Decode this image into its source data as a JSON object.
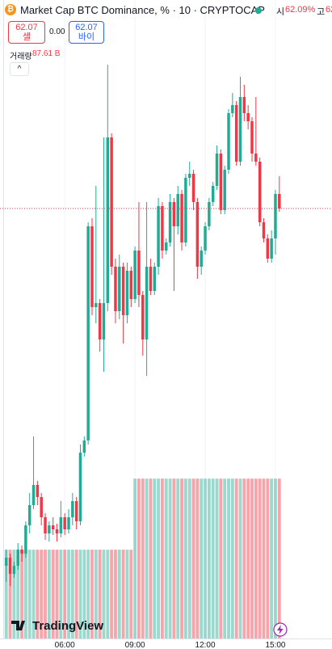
{
  "header": {
    "icon": "₿",
    "title": "Market Cap BTC Dominance, % · 10 · CRYPTOCAP",
    "open_label": "시",
    "open_value": "62.09%",
    "high_label": "고",
    "high_value": "62"
  },
  "trade": {
    "sell_price": "62.07",
    "sell_label": "셀",
    "spread": "0.00",
    "buy_price": "62.07",
    "buy_label": "바이"
  },
  "logo": "TradingView",
  "chart_data": {
    "type": "candlestick",
    "x": [
      210,
      220,
      230,
      240,
      250,
      260,
      270,
      280,
      290,
      300,
      310,
      320,
      330,
      340,
      350,
      360,
      370,
      380,
      390,
      400,
      410,
      420,
      430,
      440,
      450,
      460,
      470,
      480,
      490,
      500,
      510,
      520,
      530,
      540,
      550,
      560,
      570,
      580,
      590,
      600,
      610,
      620,
      630,
      640,
      650,
      660,
      670,
      680,
      690,
      700,
      710,
      720,
      730,
      740,
      750,
      760,
      770,
      780,
      790,
      800,
      810,
      820,
      830,
      840,
      850,
      860,
      870,
      880,
      890,
      900,
      910
    ],
    "open": [
      61.628,
      61.638,
      61.618,
      61.628,
      61.648,
      61.643,
      61.678,
      61.703,
      61.728,
      61.713,
      61.688,
      61.668,
      61.678,
      61.673,
      61.668,
      61.688,
      61.673,
      61.688,
      61.708,
      61.683,
      61.768,
      61.783,
      62.048,
      61.948,
      61.953,
      61.908,
      61.953,
      62.158,
      61.998,
      61.943,
      61.998,
      61.938,
      61.993,
      61.958,
      62.018,
      61.963,
      61.908,
      61.998,
      61.968,
      61.998,
      62.073,
      62.018,
      62.028,
      62.078,
      62.048,
      62.088,
      62.028,
      62.108,
      62.113,
      62.078,
      61.998,
      62.018,
      62.048,
      62.078,
      62.098,
      62.138,
      62.068,
      62.118,
      62.188,
      62.198,
      62.128,
      62.208,
      62.188,
      62.178,
      62.138,
      62.128,
      62.053,
      62.033,
      62.008,
      62.033,
      62.088
    ],
    "high": [
      61.648,
      61.643,
      61.633,
      61.656,
      61.653,
      61.683,
      61.718,
      61.788,
      61.733,
      61.718,
      61.693,
      61.683,
      61.688,
      61.68,
      61.708,
      61.693,
      61.698,
      61.718,
      61.713,
      61.778,
      61.788,
      62.053,
      62.058,
      62.098,
      61.958,
      62.158,
      62.248,
      62.163,
      62.008,
      62.013,
      62.003,
      62.003,
      61.998,
      62.023,
      62.078,
      61.968,
      62.078,
      62.008,
      62.003,
      62.083,
      62.078,
      62.033,
      62.088,
      62.083,
      62.098,
      62.093,
      62.113,
      62.128,
      62.118,
      62.083,
      62.023,
      62.053,
      62.083,
      62.103,
      62.148,
      62.143,
      62.123,
      62.193,
      62.213,
      62.203,
      62.233,
      62.223,
      62.198,
      62.183,
      62.208,
      62.133,
      62.058,
      62.038,
      62.043,
      62.093,
      62.11
    ],
    "low": [
      61.608,
      61.603,
      61.613,
      61.623,
      61.633,
      61.638,
      61.668,
      61.698,
      61.703,
      61.678,
      61.66,
      61.658,
      61.666,
      61.658,
      61.663,
      61.666,
      61.668,
      61.678,
      61.673,
      61.678,
      61.763,
      61.778,
      61.938,
      61.928,
      61.893,
      61.868,
      61.943,
      61.988,
      61.928,
      61.933,
      61.903,
      61.928,
      61.948,
      61.953,
      61.948,
      61.888,
      61.863,
      61.963,
      61.963,
      61.988,
      62.008,
      62.013,
      62.023,
      61.968,
      62.038,
      62.018,
      62.023,
      62.098,
      62.068,
      61.983,
      61.988,
      62.013,
      62.043,
      62.073,
      62.093,
      62.063,
      62.063,
      62.113,
      62.183,
      62.123,
      62.123,
      62.178,
      62.168,
      62.128,
      62.123,
      62.048,
      62.028,
      62.003,
      62.003,
      62.013,
      62.066
    ],
    "close": [
      61.638,
      61.618,
      61.628,
      61.648,
      61.643,
      61.678,
      61.703,
      61.728,
      61.713,
      61.688,
      61.668,
      61.678,
      61.673,
      61.668,
      61.688,
      61.673,
      61.688,
      61.708,
      61.683,
      61.768,
      61.783,
      62.048,
      61.948,
      61.953,
      61.908,
      61.953,
      62.158,
      61.998,
      61.943,
      61.998,
      61.938,
      61.993,
      61.958,
      62.018,
      61.963,
      61.908,
      61.998,
      61.968,
      61.998,
      62.073,
      62.018,
      62.028,
      62.078,
      62.048,
      62.088,
      62.028,
      62.108,
      62.113,
      62.078,
      61.998,
      62.018,
      62.048,
      62.078,
      62.098,
      62.138,
      62.068,
      62.118,
      62.188,
      62.198,
      62.128,
      62.208,
      62.188,
      62.178,
      62.138,
      62.128,
      62.053,
      62.033,
      62.008,
      62.033,
      62.088,
      62.07
    ],
    "volume": [
      48.67,
      48.67,
      48.67,
      48.67,
      48.67,
      48.67,
      48.67,
      48.67,
      48.67,
      48.67,
      48.67,
      48.67,
      48.67,
      48.67,
      48.67,
      48.67,
      48.67,
      48.67,
      48.67,
      48.67,
      48.67,
      48.67,
      48.67,
      48.67,
      48.67,
      48.67,
      48.67,
      48.67,
      48.67,
      48.67,
      48.67,
      48.67,
      48.67,
      87.61,
      87.61,
      87.61,
      87.61,
      87.61,
      87.61,
      87.61,
      87.61,
      87.61,
      87.61,
      87.61,
      87.61,
      87.61,
      87.61,
      87.61,
      87.61,
      87.61,
      87.61,
      87.61,
      87.61,
      87.61,
      87.61,
      87.61,
      87.61,
      87.61,
      87.61,
      87.61,
      87.61,
      87.61,
      87.61,
      87.61,
      87.61,
      87.61,
      87.61,
      87.61,
      87.61,
      87.61,
      87.61
    ],
    "volume_legend": {
      "label": "거래량",
      "value_label": "87.61 B"
    },
    "up_color": "#22ab94",
    "down_color": "#f23645",
    "ylim": [
      61.528,
      62.328
    ],
    "volume_ylim": [
      0,
      155
    ],
    "xlim": [
      194,
      1045
    ],
    "xticks": [
      {
        "value": 360,
        "label": "06:00"
      },
      {
        "value": 540,
        "label": "09:00"
      },
      {
        "value": 720,
        "label": "12:00"
      },
      {
        "value": 900,
        "label": "15:00"
      }
    ],
    "grid": true
  }
}
